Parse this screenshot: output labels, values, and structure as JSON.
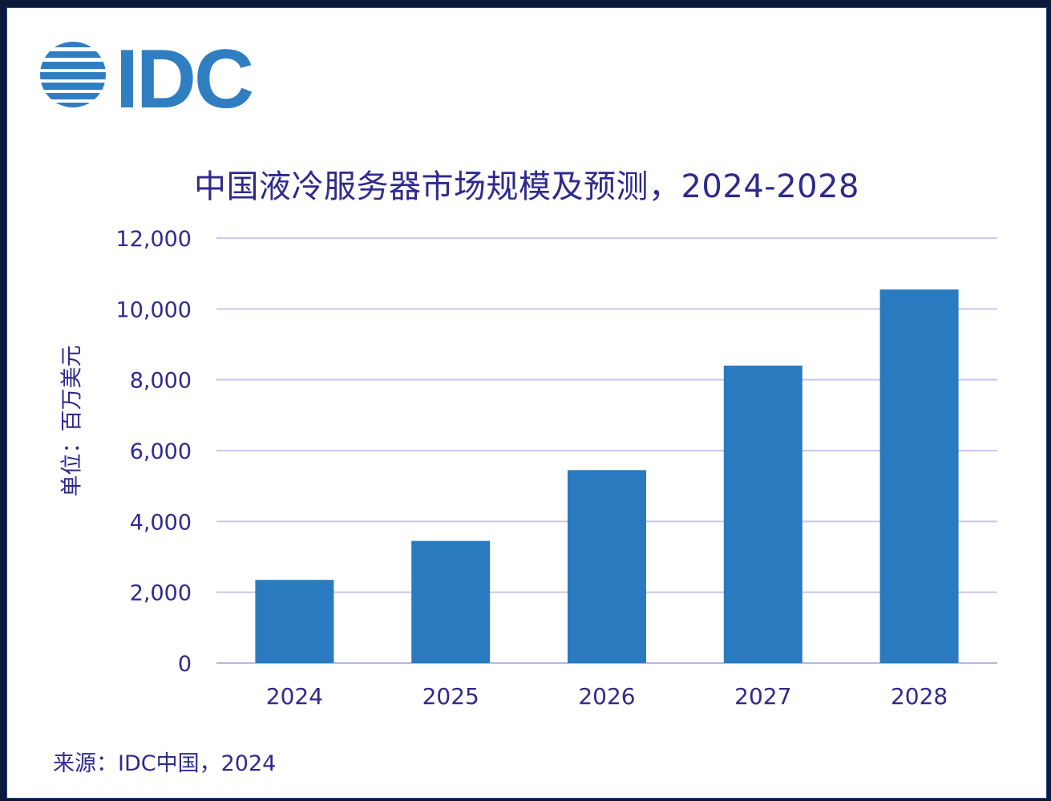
{
  "logo_text": "IDC",
  "title": "中国液冷服务器市场规模及预测，2024-2028",
  "ylabel": "单位：百万美元",
  "source": "来源：IDC中国，2024",
  "colors": {
    "bar": "#2a7abf",
    "grid": "#c7c7ee",
    "axis": "#b8b8e6",
    "text": "#2e2a8c",
    "logo": "#2f7ec2"
  },
  "chart_data": {
    "type": "bar",
    "title": "中国液冷服务器市场规模及预测，2024-2028",
    "xlabel": "",
    "ylabel": "单位：百万美元",
    "categories": [
      "2024",
      "2025",
      "2026",
      "2027",
      "2028"
    ],
    "values": [
      2350,
      3450,
      5450,
      8400,
      10550
    ],
    "ylim": [
      0,
      12000
    ],
    "yticks": [
      0,
      2000,
      4000,
      6000,
      8000,
      10000,
      12000
    ],
    "ytick_labels": [
      "0",
      "2,000",
      "4,000",
      "6,000",
      "8,000",
      "10,000",
      "12,000"
    ],
    "grid": true,
    "legend": "none"
  }
}
